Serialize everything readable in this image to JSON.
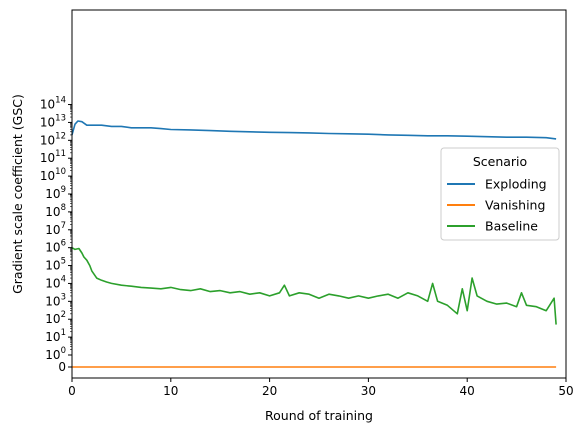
{
  "chart_data": {
    "type": "line",
    "xlabel": "Round of training",
    "ylabel": "Gradient scale coefficient (GSC)",
    "xlim": [
      0,
      50
    ],
    "x_ticks": [
      0,
      10,
      20,
      30,
      40,
      50
    ],
    "y_scale": "symlog",
    "y_ticks": [
      {
        "value": 0,
        "label": "0"
      },
      {
        "value": 1,
        "label": "10",
        "exp": "0"
      },
      {
        "value": 10,
        "label": "10",
        "exp": "1"
      },
      {
        "value": 100,
        "label": "10",
        "exp": "2"
      },
      {
        "value": 1000,
        "label": "10",
        "exp": "3"
      },
      {
        "value": 10000,
        "label": "10",
        "exp": "4"
      },
      {
        "value": 100000,
        "label": "10",
        "exp": "5"
      },
      {
        "value": 1000000,
        "label": "10",
        "exp": "6"
      },
      {
        "value": 10000000,
        "label": "10",
        "exp": "7"
      },
      {
        "value": 100000000,
        "label": "10",
        "exp": "8"
      },
      {
        "value": 1000000000,
        "label": "10",
        "exp": "9"
      },
      {
        "value": 10000000000,
        "label": "10",
        "exp": "10"
      },
      {
        "value": 100000000000,
        "label": "10",
        "exp": "11"
      },
      {
        "value": 1000000000000,
        "label": "10",
        "exp": "12"
      },
      {
        "value": 10000000000000,
        "label": "10",
        "exp": "13"
      },
      {
        "value": 100000000000000,
        "label": "10",
        "exp": "14"
      }
    ],
    "legend": {
      "title": "Scenario",
      "placement": "center-right"
    },
    "series": [
      {
        "name": "Exploding",
        "color": "#1f77b4",
        "x": [
          0,
          0.3,
          0.6,
          1,
          1.5,
          2,
          3,
          4,
          5,
          6,
          7,
          8,
          9,
          10,
          12,
          14,
          16,
          18,
          20,
          22,
          24,
          26,
          28,
          30,
          32,
          34,
          36,
          38,
          40,
          42,
          44,
          46,
          48,
          49
        ],
        "y": [
          2000000000000.0,
          8000000000000.0,
          12000000000000.0,
          11000000000000.0,
          7000000000000.0,
          7000000000000.0,
          7000000000000.0,
          6000000000000.0,
          6000000000000.0,
          5000000000000.0,
          5000000000000.0,
          5000000000000.0,
          4500000000000.0,
          4000000000000.0,
          3800000000000.0,
          3500000000000.0,
          3200000000000.0,
          3000000000000.0,
          2800000000000.0,
          2700000000000.0,
          2600000000000.0,
          2400000000000.0,
          2300000000000.0,
          2200000000000.0,
          2000000000000.0,
          1900000000000.0,
          1800000000000.0,
          1800000000000.0,
          1700000000000.0,
          1600000000000.0,
          1500000000000.0,
          1500000000000.0,
          1400000000000.0,
          1200000000000.0
        ]
      },
      {
        "name": "Vanishing",
        "color": "#ff7f0e",
        "x": [
          0,
          49
        ],
        "y": [
          0,
          0
        ]
      },
      {
        "name": "Baseline",
        "color": "#2ca02c",
        "x": [
          0,
          0.3,
          0.7,
          1,
          1.2,
          1.5,
          1.8,
          2,
          2.5,
          3,
          3.5,
          4,
          5,
          6,
          7,
          8,
          9,
          10,
          11,
          12,
          13,
          14,
          15,
          16,
          17,
          18,
          19,
          20,
          21,
          21.5,
          22,
          23,
          24,
          25,
          26,
          27,
          28,
          29,
          30,
          31,
          32,
          33,
          34,
          35,
          36,
          36.5,
          37,
          38,
          39,
          39.5,
          40,
          40.5,
          41,
          42,
          43,
          44,
          45,
          45.5,
          46,
          47,
          48,
          48.8,
          49
        ],
        "y": [
          1000000,
          800000,
          900000,
          500000,
          300000,
          200000,
          100000,
          50000,
          20000,
          15000,
          12000,
          10000,
          8000,
          7000,
          6000,
          5500,
          5000,
          6000,
          4500,
          4000,
          5000,
          3500,
          4000,
          3000,
          3500,
          2500,
          3000,
          2000,
          3000,
          8000,
          2000,
          3000,
          2500,
          1500,
          2500,
          2000,
          1500,
          2000,
          1500,
          2000,
          2500,
          1500,
          3000,
          2000,
          1000,
          10000,
          1000,
          600,
          200,
          5000,
          300,
          20000,
          2000,
          1000,
          700,
          800,
          500,
          3000,
          600,
          500,
          300,
          1500,
          50
        ]
      }
    ]
  }
}
